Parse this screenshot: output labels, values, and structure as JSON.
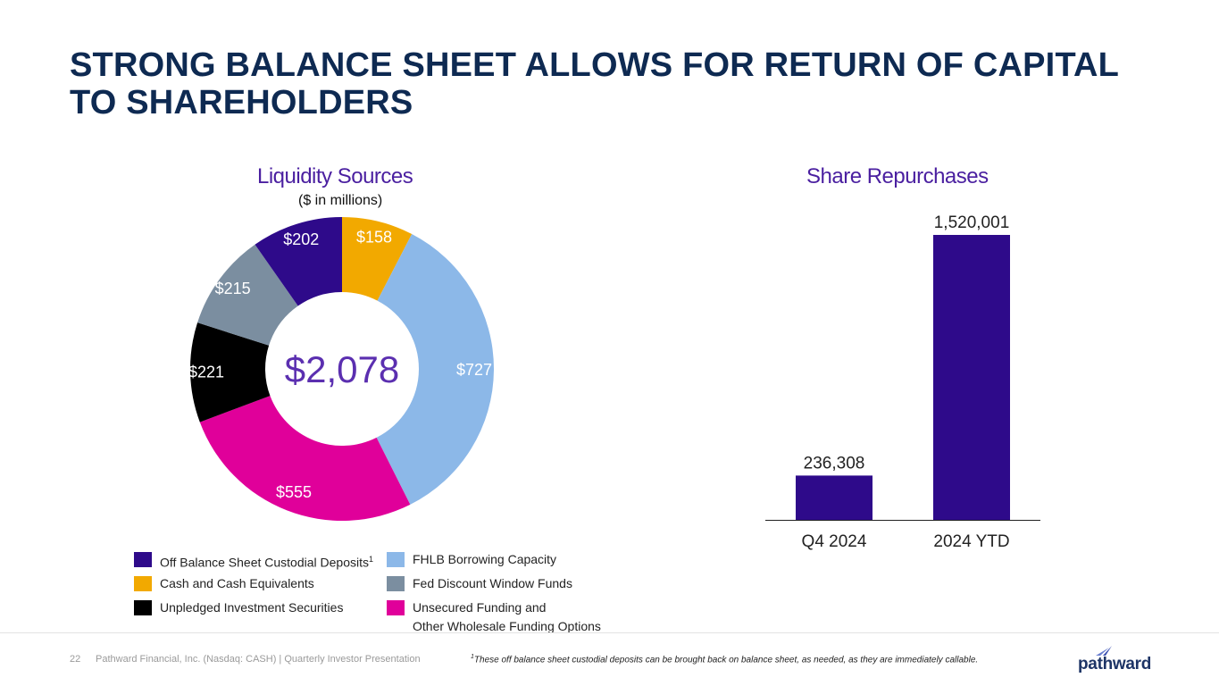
{
  "title": "STRONG BALANCE SHEET ALLOWS FOR RETURN OF CAPITAL TO SHAREHOLDERS",
  "colors": {
    "navy": "#0e2a52",
    "purple_title": "#4a1fa0",
    "off_balance": "#2e0a8a",
    "cash": "#f2a900",
    "fhlb": "#8cb8e8",
    "fed": "#7b8ea0",
    "unpledged": "#000000",
    "unsecured": "#e0009a"
  },
  "chart_data": [
    {
      "type": "pie",
      "title": "Liquidity Sources",
      "subtitle": "($ in millions)",
      "center_label": "$2,078",
      "total": 2078,
      "slices": [
        {
          "name": "Cash and Cash Equivalents",
          "value": 158,
          "label": "$158",
          "color": "#f2a900"
        },
        {
          "name": "FHLB Borrowing Capacity",
          "value": 727,
          "label": "$727",
          "color": "#8cb8e8"
        },
        {
          "name": "Unsecured Funding and Other Wholesale Funding Options",
          "value": 555,
          "label": "$555",
          "color": "#e0009a"
        },
        {
          "name": "Unpledged Investment Securities",
          "value": 221,
          "label": "$221",
          "color": "#000000"
        },
        {
          "name": "Fed Discount Window Funds",
          "value": 215,
          "label": "$215",
          "color": "#7b8ea0"
        },
        {
          "name": "Off Balance Sheet Custodial Deposits",
          "value": 202,
          "label": "$202",
          "color": "#2e0a8a"
        }
      ],
      "legend": {
        "col1": [
          {
            "text": "Off Balance Sheet Custodial Deposits",
            "sup": "1",
            "color": "#2e0a8a"
          },
          {
            "text": "Cash and Cash Equivalents",
            "color": "#f2a900"
          },
          {
            "text": "Unpledged Investment Securities",
            "color": "#000000"
          }
        ],
        "col2": [
          {
            "text": "FHLB Borrowing Capacity",
            "color": "#8cb8e8"
          },
          {
            "text": "Fed Discount Window Funds",
            "color": "#7b8ea0"
          },
          {
            "text": "Unsecured Funding and",
            "text2": "Other Wholesale Funding Options",
            "color": "#e0009a"
          }
        ]
      }
    },
    {
      "type": "bar",
      "title": "Share Repurchases",
      "categories": [
        "Q4 2024",
        "2024 YTD"
      ],
      "values": [
        236308,
        1520001
      ],
      "value_labels": [
        "236,308",
        "1,520,001"
      ],
      "color": "#2e0a8a",
      "ylim": [
        0,
        1520001
      ]
    }
  ],
  "footer": {
    "page_number": "22",
    "company": "Pathward Financial, Inc. (Nasdaq: CASH) | Quarterly Investor Presentation",
    "footnote_mark": "1",
    "footnote": "These off balance sheet custodial deposits can be brought back on balance sheet, as needed, as they are immediately callable.",
    "logo": "pathward"
  }
}
